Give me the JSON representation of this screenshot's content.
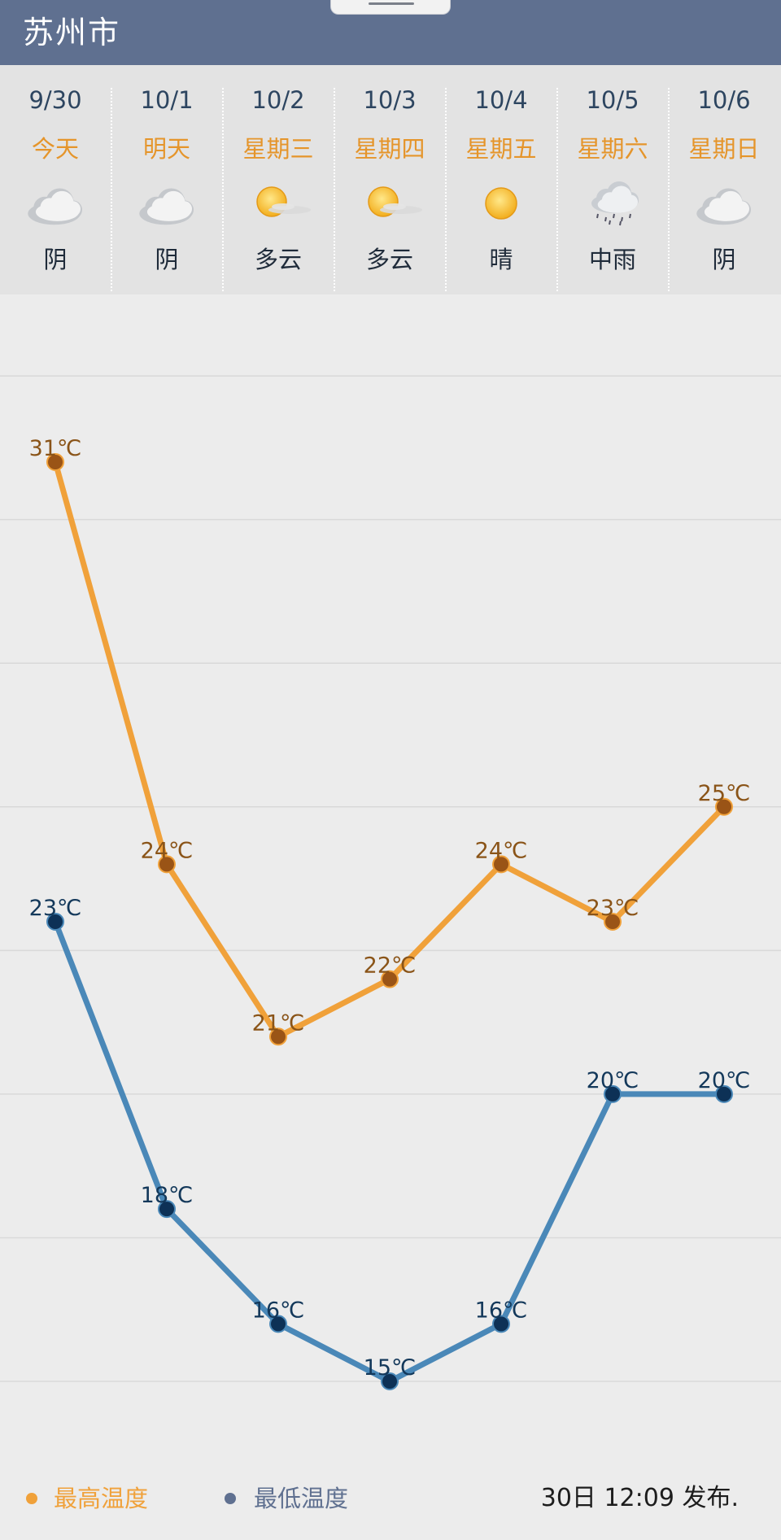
{
  "header": {
    "city": "苏州市"
  },
  "forecast": {
    "days": [
      {
        "date": "9/30",
        "week": "今天",
        "condition": "阴",
        "icon": "overcast-cloud-icon"
      },
      {
        "date": "10/1",
        "week": "明天",
        "condition": "阴",
        "icon": "overcast-cloud-icon"
      },
      {
        "date": "10/2",
        "week": "星期三",
        "condition": "多云",
        "icon": "sun-behind-cloud-icon"
      },
      {
        "date": "10/3",
        "week": "星期四",
        "condition": "多云",
        "icon": "sun-behind-cloud-icon"
      },
      {
        "date": "10/4",
        "week": "星期五",
        "condition": "晴",
        "icon": "sun-icon"
      },
      {
        "date": "10/5",
        "week": "星期六",
        "condition": "中雨",
        "icon": "rain-cloud-icon"
      },
      {
        "date": "10/6",
        "week": "星期日",
        "condition": "阴",
        "icon": "overcast-cloud-icon"
      }
    ]
  },
  "legend": {
    "high_label": "最高温度",
    "low_label": "最低温度"
  },
  "footer": {
    "published": "30日 12:09 发布."
  },
  "colors": {
    "header_bg": "#5f7090",
    "high_line": "#f0a13a",
    "high_point": "#9a5416",
    "high_text": "#8a5418",
    "low_line": "#4a88b8",
    "low_point": "#0d3156",
    "low_text": "#13385a",
    "week_text": "#e5952b"
  },
  "chart_data": {
    "type": "line",
    "categories": [
      "9/30",
      "10/1",
      "10/2",
      "10/3",
      "10/4",
      "10/5",
      "10/6"
    ],
    "unit": "℃",
    "ylim": [
      12,
      36
    ],
    "grid": true,
    "legend_position": "bottom-left",
    "series": [
      {
        "name": "最高温度",
        "values": [
          31,
          24,
          21,
          22,
          24,
          23,
          25
        ]
      },
      {
        "name": "最低温度",
        "values": [
          23,
          18,
          16,
          15,
          16,
          20,
          20
        ]
      }
    ]
  }
}
